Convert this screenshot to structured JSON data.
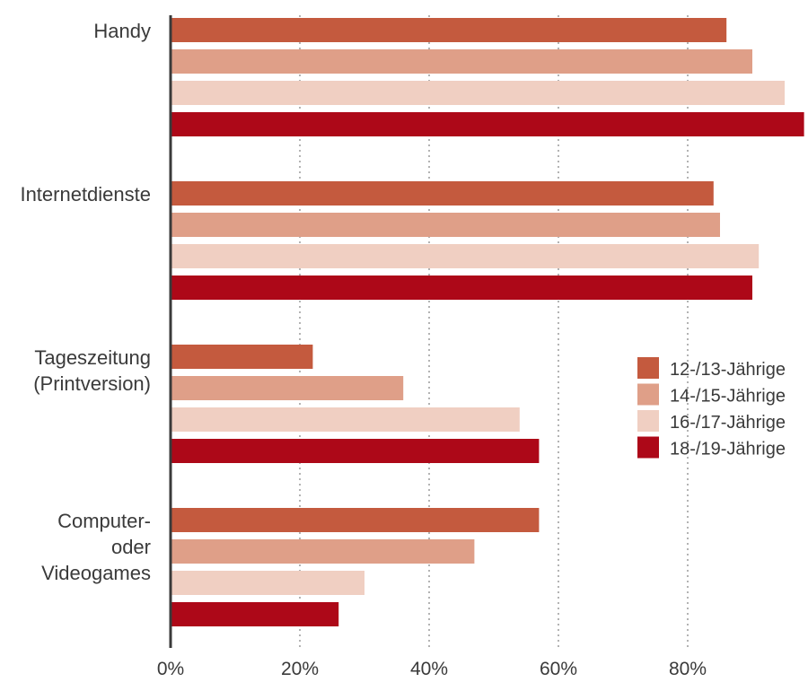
{
  "chart_data": {
    "type": "bar",
    "orientation": "horizontal",
    "title": "",
    "xlabel": "",
    "ylabel": "",
    "xlim": [
      0,
      100
    ],
    "grid": true,
    "legend_position": "right",
    "categories": [
      [
        "Handy"
      ],
      [
        "Internetdienste"
      ],
      [
        "Tageszeitung",
        "(Printversion)"
      ],
      [
        "Computer-",
        "oder",
        "Videogames"
      ]
    ],
    "x_ticks": [
      0,
      20,
      40,
      60,
      80
    ],
    "x_tick_labels": [
      "0%",
      "20%",
      "40%",
      "60%",
      "80%"
    ],
    "series": [
      {
        "name": "12-/13-Jährige",
        "color": "#c45a3e",
        "values": [
          86,
          84,
          22,
          57
        ]
      },
      {
        "name": "14-/15-Jährige",
        "color": "#df9f88",
        "values": [
          90,
          85,
          36,
          47
        ]
      },
      {
        "name": "16-/17-Jährige",
        "color": "#f0cfc2",
        "values": [
          95,
          91,
          54,
          30
        ]
      },
      {
        "name": "18-/19-Jährige",
        "color": "#ad0818",
        "values": [
          98,
          90,
          57,
          26
        ]
      }
    ]
  }
}
